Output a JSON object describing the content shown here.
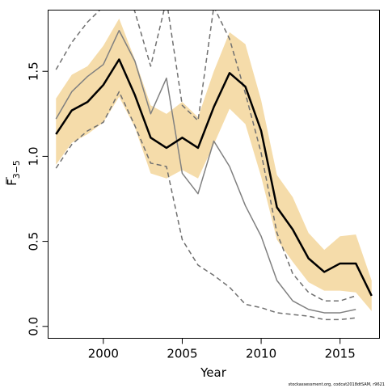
{
  "chart_data": {
    "type": "line",
    "title": "",
    "xlabel": "Year",
    "ylabel": "F",
    "ylabel_subscript": "3−5",
    "xlim": [
      1996.5,
      2017.5
    ],
    "ylim": [
      -0.07,
      1.86
    ],
    "xticks": [
      2000,
      2005,
      2010,
      2015
    ],
    "yticks": [
      0.0,
      0.5,
      1.0,
      1.5
    ],
    "ytick_labels": [
      "0.0",
      "0.5",
      "1.0",
      "1.5"
    ],
    "grid": false,
    "legend": "none",
    "credit": "stockassessment.org, codcat2018dtSAM, r9621",
    "colors": {
      "band": "#f5dcaa",
      "estimate": "#000000",
      "retro": "#808080",
      "retro_ci": "#707070"
    },
    "confidence_band": {
      "x": [
        1997,
        1998,
        1999,
        2000,
        2001,
        2002,
        2003,
        2004,
        2005,
        2006,
        2007,
        2008,
        2009,
        2010,
        2011,
        2012,
        2013,
        2014,
        2015,
        2016,
        2017
      ],
      "upper": [
        1.34,
        1.48,
        1.53,
        1.65,
        1.81,
        1.57,
        1.3,
        1.25,
        1.32,
        1.23,
        1.5,
        1.73,
        1.66,
        1.33,
        0.89,
        0.76,
        0.55,
        0.45,
        0.53,
        0.54,
        0.27
      ],
      "lower": [
        0.95,
        1.08,
        1.13,
        1.2,
        1.35,
        1.17,
        0.9,
        0.87,
        0.92,
        0.87,
        1.07,
        1.28,
        1.19,
        0.88,
        0.51,
        0.38,
        0.26,
        0.21,
        0.21,
        0.2,
        0.09
      ]
    },
    "series": [
      {
        "role": "estimate",
        "x": [
          1997,
          1998,
          1999,
          2000,
          2001,
          2002,
          2003,
          2004,
          2005,
          2006,
          2007,
          2008,
          2009,
          2010,
          2011,
          2012,
          2013,
          2014,
          2015,
          2016,
          2017
        ],
        "values": [
          1.13,
          1.27,
          1.32,
          1.42,
          1.57,
          1.36,
          1.11,
          1.05,
          1.11,
          1.05,
          1.29,
          1.49,
          1.41,
          1.15,
          0.7,
          0.57,
          0.4,
          0.32,
          0.37,
          0.37,
          0.18
        ]
      },
      {
        "role": "retro",
        "x": [
          1997,
          1998,
          1999,
          2000,
          2001,
          2002,
          2003,
          2004,
          2005,
          2006,
          2007,
          2008,
          2009,
          2010,
          2011,
          2012,
          2013,
          2014,
          2015,
          2016
        ],
        "values": [
          1.22,
          1.38,
          1.47,
          1.54,
          1.74,
          1.56,
          1.25,
          1.46,
          0.9,
          0.78,
          1.09,
          0.94,
          0.71,
          0.53,
          0.27,
          0.15,
          0.1,
          0.08,
          0.08,
          0.1
        ]
      },
      {
        "role": "retro_upper",
        "x": [
          1997,
          1998,
          1999,
          2000,
          2001,
          2002,
          2003,
          2004,
          2005,
          2006,
          2007,
          2008,
          2009,
          2010,
          2011,
          2012,
          2013,
          2014,
          2015,
          2016
        ],
        "values": [
          1.51,
          1.67,
          1.79,
          1.88,
          2.1,
          1.85,
          1.53,
          1.92,
          1.3,
          1.21,
          1.88,
          1.69,
          1.37,
          1.02,
          0.55,
          0.31,
          0.2,
          0.15,
          0.15,
          0.18
        ]
      },
      {
        "role": "retro_lower",
        "x": [
          1997,
          1998,
          1999,
          2000,
          2001,
          2002,
          2003,
          2004,
          2005,
          2006,
          2007,
          2008,
          2009,
          2010,
          2011,
          2012,
          2013,
          2014,
          2015,
          2016
        ],
        "values": [
          0.93,
          1.07,
          1.15,
          1.2,
          1.38,
          1.18,
          0.96,
          0.94,
          0.51,
          0.36,
          0.3,
          0.23,
          0.13,
          0.11,
          0.08,
          0.07,
          0.06,
          0.04,
          0.04,
          0.05
        ]
      }
    ]
  }
}
